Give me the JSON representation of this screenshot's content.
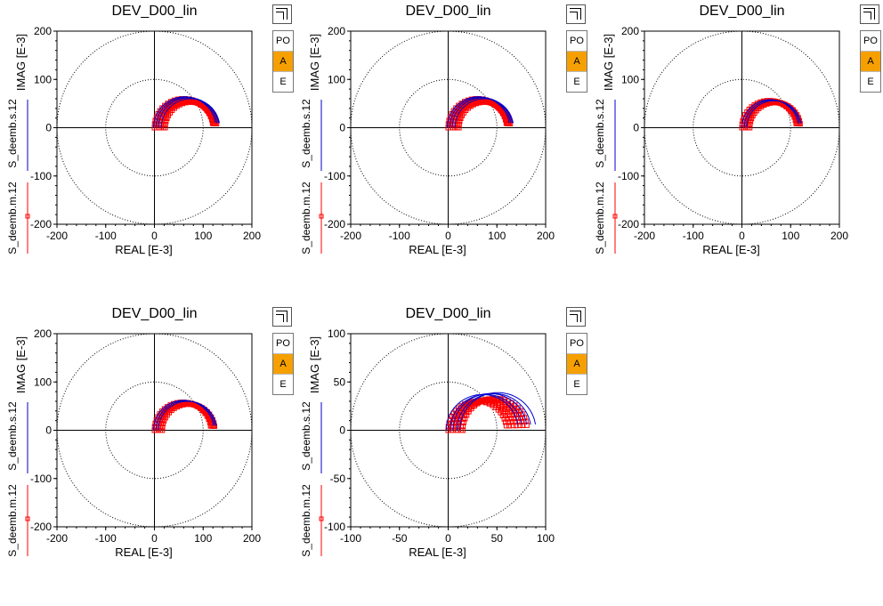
{
  "panels": [
    {
      "title": "DEV_D00_lin",
      "ylabel": "IMAG [E-3]",
      "xlabel": "REAL [E-3]",
      "legend_blue": "S_deemb.s.12",
      "legend_red": "S_deemb.m.12",
      "buttons": [
        "PO",
        "A",
        "E"
      ]
    },
    {
      "title": "DEV_D00_lin",
      "ylabel": "IMAG [E-3]",
      "xlabel": "REAL [E-3]",
      "legend_blue": "S_deemb.s.12",
      "legend_red": "S_deemb.m.12",
      "buttons": [
        "PO",
        "A",
        "E"
      ]
    },
    {
      "title": "DEV_D00_lin",
      "ylabel": "IMAG [E-3]",
      "xlabel": "REAL [E-3]",
      "legend_blue": "S_deemb.s.12",
      "legend_red": "S_deemb.m.12",
      "buttons": [
        "PO",
        "A",
        "E"
      ]
    },
    {
      "title": "DEV_D00_lin",
      "ylabel": "IMAG [E-3]",
      "xlabel": "REAL [E-3]",
      "legend_blue": "S_deemb.s.12",
      "legend_red": "S_deemb.m.12",
      "buttons": [
        "PO",
        "A",
        "E"
      ]
    },
    {
      "title": "DEV_D00_lin",
      "ylabel": "IMAG [E-3]",
      "xlabel": "REAL [E-3]",
      "legend_blue": "S_deemb.s.12",
      "legend_red": "S_deemb.m.12",
      "buttons": [
        "PO",
        "A",
        "E"
      ]
    }
  ],
  "colors": {
    "measured": "#ff0000",
    "simulated": "#0000cc",
    "selected_button": "#f5a000"
  },
  "chart_data": [
    {
      "type": "scatter",
      "title": "DEV_D00_lin",
      "xlabel": "REAL [E-3]",
      "ylabel": "IMAG [E-3]",
      "xlim": [
        -200,
        200
      ],
      "ylim": [
        -200,
        200
      ],
      "xticks": [
        "-200",
        "-100",
        "0",
        "100",
        "200"
      ],
      "yticks": [
        "200",
        "100",
        "0",
        "-100",
        "-200"
      ],
      "circles": [
        100,
        200
      ],
      "grid": false,
      "series": [
        {
          "name": "S_deemb.m.12",
          "marker": "square",
          "arcs": [
            {
              "center": [
                60,
                0
              ],
              "radius": 60,
              "points": 24
            },
            {
              "center": [
                63,
                0
              ],
              "radius": 58,
              "points": 24
            },
            {
              "center": [
                66,
                0
              ],
              "radius": 56,
              "points": 24
            },
            {
              "center": [
                69,
                0
              ],
              "radius": 55,
              "points": 24
            },
            {
              "center": [
                72,
                0
              ],
              "radius": 54,
              "points": 24
            },
            {
              "center": [
                75,
                0
              ],
              "radius": 53,
              "points": 24
            }
          ]
        },
        {
          "name": "S_deemb.s.12",
          "marker": "line",
          "arcs": [
            {
              "center": [
                62,
                0
              ],
              "radius": 64,
              "points": 40
            },
            {
              "center": [
                66,
                0
              ],
              "radius": 63,
              "points": 40
            },
            {
              "center": [
                70,
                0
              ],
              "radius": 62,
              "points": 40
            },
            {
              "center": [
                74,
                0
              ],
              "radius": 60,
              "points": 40
            }
          ]
        }
      ]
    },
    {
      "type": "scatter",
      "title": "DEV_D00_lin",
      "xlabel": "REAL [E-3]",
      "ylabel": "IMAG [E-3]",
      "xlim": [
        -200,
        200
      ],
      "ylim": [
        -200,
        200
      ],
      "xticks": [
        "-200",
        "-100",
        "0",
        "100",
        "200"
      ],
      "yticks": [
        "200",
        "100",
        "0",
        "-100",
        "-200"
      ],
      "circles": [
        100,
        200
      ],
      "grid": false,
      "series": [
        {
          "name": "S_deemb.m.12",
          "marker": "square",
          "arcs": [
            {
              "center": [
                60,
                0
              ],
              "radius": 60,
              "points": 24
            },
            {
              "center": [
                63,
                0
              ],
              "radius": 58,
              "points": 24
            },
            {
              "center": [
                66,
                0
              ],
              "radius": 56,
              "points": 24
            },
            {
              "center": [
                69,
                0
              ],
              "radius": 55,
              "points": 24
            },
            {
              "center": [
                72,
                0
              ],
              "radius": 54,
              "points": 24
            },
            {
              "center": [
                75,
                0
              ],
              "radius": 53,
              "points": 24
            }
          ]
        },
        {
          "name": "S_deemb.s.12",
          "marker": "line",
          "arcs": [
            {
              "center": [
                62,
                0
              ],
              "radius": 64,
              "points": 40
            },
            {
              "center": [
                66,
                0
              ],
              "radius": 63,
              "points": 40
            },
            {
              "center": [
                70,
                0
              ],
              "radius": 62,
              "points": 40
            },
            {
              "center": [
                74,
                0
              ],
              "radius": 60,
              "points": 40
            }
          ]
        }
      ]
    },
    {
      "type": "scatter",
      "title": "DEV_D00_lin",
      "xlabel": "REAL [E-3]",
      "ylabel": "IMAG [E-3]",
      "xlim": [
        -200,
        200
      ],
      "ylim": [
        -200,
        200
      ],
      "xticks": [
        "-200",
        "-100",
        "0",
        "100",
        "200"
      ],
      "yticks": [
        "200",
        "100",
        "0",
        "-100",
        "-200"
      ],
      "circles": [
        100,
        200
      ],
      "grid": false,
      "series": [
        {
          "name": "S_deemb.m.12",
          "marker": "square",
          "arcs": [
            {
              "center": [
                56,
                0
              ],
              "radius": 56,
              "points": 24
            },
            {
              "center": [
                59,
                0
              ],
              "radius": 55,
              "points": 24
            },
            {
              "center": [
                62,
                0
              ],
              "radius": 54,
              "points": 24
            },
            {
              "center": [
                65,
                0
              ],
              "radius": 53,
              "points": 24
            },
            {
              "center": [
                68,
                0
              ],
              "radius": 52,
              "points": 24
            }
          ]
        },
        {
          "name": "S_deemb.s.12",
          "marker": "line",
          "arcs": [
            {
              "center": [
                58,
                0
              ],
              "radius": 58,
              "points": 40
            },
            {
              "center": [
                62,
                0
              ],
              "radius": 57,
              "points": 40
            },
            {
              "center": [
                66,
                0
              ],
              "radius": 56,
              "points": 40
            }
          ]
        }
      ]
    },
    {
      "type": "scatter",
      "title": "DEV_D00_lin",
      "xlabel": "REAL [E-3]",
      "ylabel": "IMAG [E-3]",
      "xlim": [
        -200,
        200
      ],
      "ylim": [
        -200,
        200
      ],
      "xticks": [
        "-200",
        "-100",
        "0",
        "100",
        "200"
      ],
      "yticks": [
        "200",
        "100",
        "0",
        "-100",
        "-200"
      ],
      "circles": [
        100,
        200
      ],
      "grid": false,
      "series": [
        {
          "name": "S_deemb.m.12",
          "marker": "square",
          "arcs": [
            {
              "center": [
                58,
                0
              ],
              "radius": 58,
              "points": 24
            },
            {
              "center": [
                61,
                0
              ],
              "radius": 57,
              "points": 24
            },
            {
              "center": [
                64,
                0
              ],
              "radius": 56,
              "points": 24
            },
            {
              "center": [
                67,
                0
              ],
              "radius": 55,
              "points": 24
            },
            {
              "center": [
                70,
                0
              ],
              "radius": 54,
              "points": 24
            }
          ]
        },
        {
          "name": "S_deemb.s.12",
          "marker": "line",
          "arcs": [
            {
              "center": [
                60,
                0
              ],
              "radius": 62,
              "points": 40
            },
            {
              "center": [
                64,
                0
              ],
              "radius": 61,
              "points": 40
            },
            {
              "center": [
                68,
                0
              ],
              "radius": 60,
              "points": 40
            }
          ]
        }
      ]
    },
    {
      "type": "scatter",
      "title": "DEV_D00_lin",
      "xlabel": "REAL [E-3]",
      "ylabel": "IMAG [E-3]",
      "xlim": [
        -100,
        100
      ],
      "ylim": [
        -100,
        100
      ],
      "xticks": [
        "-100",
        "-50",
        "0",
        "50",
        "100"
      ],
      "yticks": [
        "100",
        "50",
        "0",
        "-50",
        "-100"
      ],
      "circles": [
        50,
        100
      ],
      "grid": false,
      "series": [
        {
          "name": "S_deemb.m.12",
          "marker": "square",
          "arcs": [
            {
              "center": [
                30,
                0
              ],
              "radius": 30,
              "points": 24
            },
            {
              "center": [
                33,
                0
              ],
              "radius": 30,
              "points": 24
            },
            {
              "center": [
                36,
                0
              ],
              "radius": 31,
              "points": 24
            },
            {
              "center": [
                39,
                0
              ],
              "radius": 31,
              "points": 24
            },
            {
              "center": [
                42,
                0
              ],
              "radius": 32,
              "points": 24
            },
            {
              "center": [
                45,
                0
              ],
              "radius": 32,
              "points": 24
            },
            {
              "center": [
                48,
                0
              ],
              "radius": 33,
              "points": 24
            }
          ]
        },
        {
          "name": "S_deemb.s.12",
          "marker": "line",
          "arcs": [
            {
              "center": [
                35,
                0
              ],
              "radius": 37,
              "points": 40
            },
            {
              "center": [
                39,
                0
              ],
              "radius": 37,
              "points": 40
            },
            {
              "center": [
                43,
                0
              ],
              "radius": 38,
              "points": 40
            },
            {
              "center": [
                47,
                0
              ],
              "radius": 38,
              "points": 40
            },
            {
              "center": [
                51,
                0
              ],
              "radius": 39,
              "points": 40
            }
          ]
        }
      ]
    }
  ]
}
